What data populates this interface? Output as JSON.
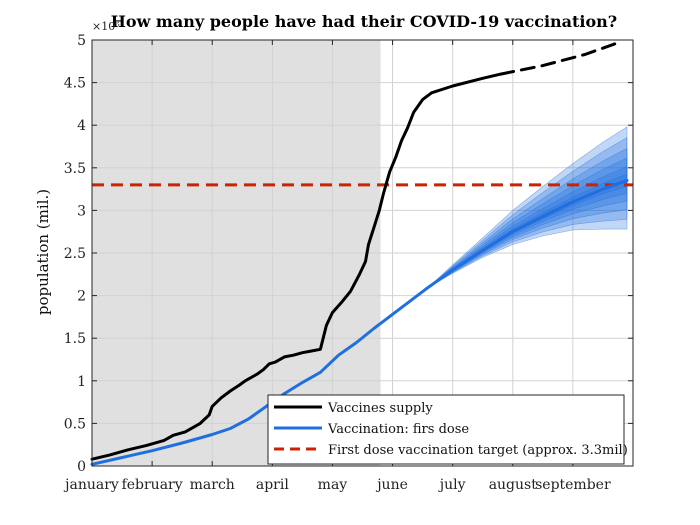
{
  "chart_data": {
    "type": "line",
    "title": "How many people have had their COVID-19 vaccination?",
    "ylabel": "population (mil.)",
    "xlabel": "",
    "y_exponent_label": "×10⁶",
    "ylim": [
      0,
      5
    ],
    "yticks": [
      0,
      0.5,
      1,
      1.5,
      2,
      2.5,
      3,
      3.5,
      4,
      4.5,
      5
    ],
    "ytick_labels": [
      "0",
      "0.5",
      "1",
      "1.5",
      "2",
      "2.5",
      "3",
      "3.5",
      "4",
      "4.5",
      "5"
    ],
    "xlim": [
      1,
      10
    ],
    "x_month_labels": [
      {
        "label": "january",
        "x": 1
      },
      {
        "label": "february",
        "x": 2
      },
      {
        "label": "march",
        "x": 3
      },
      {
        "label": "april",
        "x": 4
      },
      {
        "label": "may",
        "x": 5
      },
      {
        "label": "june",
        "x": 6
      },
      {
        "label": "july",
        "x": 7
      },
      {
        "label": "august",
        "x": 8
      },
      {
        "label": "september",
        "x": 9
      }
    ],
    "shaded_region_x": [
      1,
      5.8
    ],
    "grid": true,
    "target": {
      "name": "First dose vaccination target (approx. 3.3mil)",
      "y": 3.3,
      "color": "#cc2200"
    },
    "series": [
      {
        "name": "Vaccines supply",
        "color": "#000000",
        "x": [
          1,
          1.3,
          1.6,
          1.9,
          2.2,
          2.35,
          2.55,
          2.8,
          2.95,
          3.0,
          3.15,
          3.3,
          3.45,
          3.55,
          3.75,
          3.85,
          3.95,
          4.05,
          4.2,
          4.35,
          4.5,
          4.65,
          4.8,
          4.9,
          5.0,
          5.15,
          5.3,
          5.45,
          5.55,
          5.6,
          5.7,
          5.78,
          5.85,
          5.95,
          6.05,
          6.15,
          6.25,
          6.35,
          6.5,
          6.65,
          7.0,
          7.5,
          7.8
        ],
        "y": [
          0.08,
          0.13,
          0.19,
          0.24,
          0.3,
          0.36,
          0.4,
          0.5,
          0.6,
          0.7,
          0.8,
          0.88,
          0.95,
          1.0,
          1.08,
          1.13,
          1.2,
          1.22,
          1.28,
          1.3,
          1.33,
          1.35,
          1.37,
          1.65,
          1.8,
          1.92,
          2.05,
          2.25,
          2.4,
          2.6,
          2.82,
          3.0,
          3.2,
          3.45,
          3.62,
          3.82,
          3.97,
          4.15,
          4.3,
          4.38,
          4.46,
          4.55,
          4.6
        ]
      },
      {
        "name": "",
        "style": "dashed",
        "color": "#000000",
        "x": [
          7.8,
          8.5,
          9.2,
          9.8
        ],
        "y": [
          4.6,
          4.7,
          4.83,
          4.98
        ]
      },
      {
        "name": "Vaccination: firs dose",
        "color": "#1f6fe0",
        "x": [
          1,
          1.5,
          2.0,
          2.5,
          3.0,
          3.3,
          3.6,
          3.9,
          4.2,
          4.5,
          4.8,
          5.1,
          5.4,
          5.7,
          6.0,
          6.3,
          6.6,
          7.0,
          7.5,
          8.0,
          8.5,
          9.0,
          9.5,
          9.9
        ],
        "y": [
          0.02,
          0.1,
          0.18,
          0.27,
          0.37,
          0.44,
          0.55,
          0.7,
          0.85,
          0.98,
          1.1,
          1.3,
          1.45,
          1.62,
          1.78,
          1.94,
          2.1,
          2.3,
          2.53,
          2.75,
          2.93,
          3.1,
          3.25,
          3.35
        ]
      }
    ],
    "forecast_band": {
      "x": [
        6.6,
        7.0,
        7.5,
        8.0,
        8.5,
        9.0,
        9.5,
        9.9
      ],
      "center": [
        2.1,
        2.3,
        2.53,
        2.75,
        2.93,
        3.1,
        3.25,
        3.35
      ],
      "outer_upper": [
        2.1,
        2.36,
        2.68,
        3.0,
        3.28,
        3.55,
        3.8,
        3.98
      ],
      "outer_lower": [
        2.1,
        2.26,
        2.45,
        2.6,
        2.7,
        2.77,
        2.78,
        2.78
      ],
      "color": "#1f6fe0"
    },
    "legend_placement": "bottom-center"
  }
}
